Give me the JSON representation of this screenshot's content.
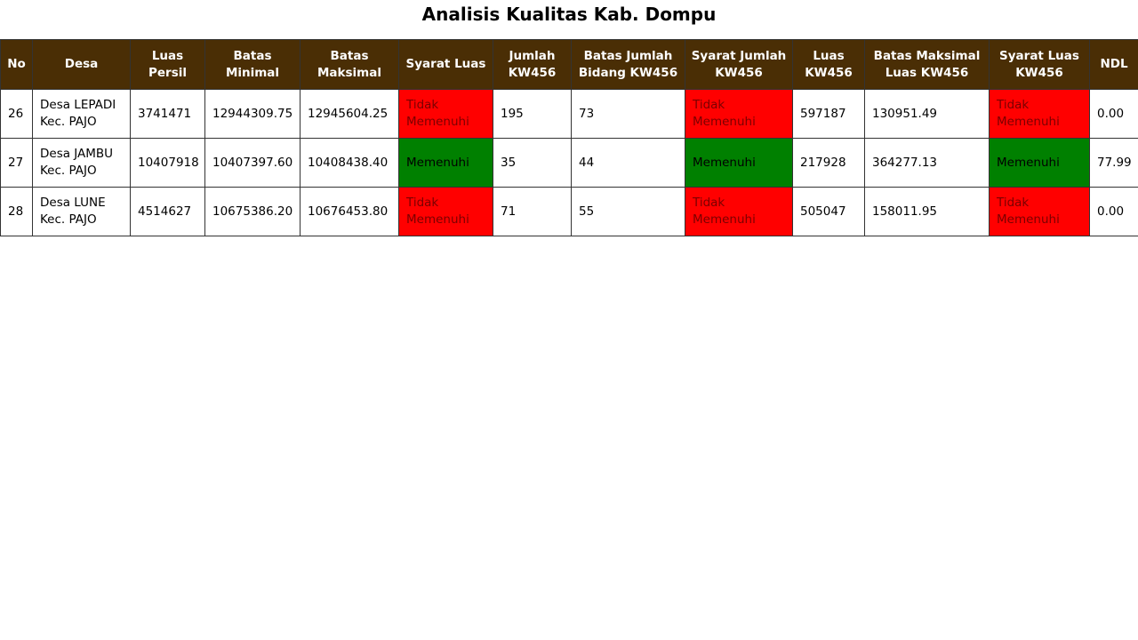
{
  "page": {
    "title": "Analisis Kualitas Kab. Dompu"
  },
  "colors": {
    "header_bg": "#4a2e05",
    "fail": "#ff0000",
    "pass": "#008000"
  },
  "table": {
    "headers": [
      "No",
      "Desa",
      "Luas Persil",
      "Batas Minimal",
      "Batas Maksimal",
      "Syarat Luas",
      "Jumlah KW456",
      "Batas Jumlah Bidang KW456",
      "Syarat Jumlah KW456",
      "Luas KW456",
      "Batas Maksimal Luas KW456",
      "Syarat Luas KW456",
      "NDL"
    ],
    "rows": [
      {
        "no": "26",
        "desa": "Desa LEPADI Kec. PAJO",
        "luas_persil": "3741471",
        "batas_minimal": "12944309.75",
        "batas_maksimal": "12945604.25",
        "syarat_luas": "Tidak Memenuhi",
        "jumlah_kw456": "195",
        "batas_jumlah_bidang_kw456": "73",
        "syarat_jumlah_kw456": "Tidak Memenuhi",
        "luas_kw456": "597187",
        "batas_maksimal_luas_kw456": "130951.49",
        "syarat_luas_kw456": "Tidak Memenuhi",
        "ndl": "0.00"
      },
      {
        "no": "27",
        "desa": "Desa JAMBU Kec. PAJO",
        "luas_persil": "10407918",
        "batas_minimal": "10407397.60",
        "batas_maksimal": "10408438.40",
        "syarat_luas": "Memenuhi",
        "jumlah_kw456": "35",
        "batas_jumlah_bidang_kw456": "44",
        "syarat_jumlah_kw456": "Memenuhi",
        "luas_kw456": "217928",
        "batas_maksimal_luas_kw456": "364277.13",
        "syarat_luas_kw456": "Memenuhi",
        "ndl": "77.99"
      },
      {
        "no": "28",
        "desa": "Desa LUNE Kec. PAJO",
        "luas_persil": "4514627",
        "batas_minimal": "10675386.20",
        "batas_maksimal": "10676453.80",
        "syarat_luas": "Tidak Memenuhi",
        "jumlah_kw456": "71",
        "batas_jumlah_bidang_kw456": "55",
        "syarat_jumlah_kw456": "Tidak Memenuhi",
        "luas_kw456": "505047",
        "batas_maksimal_luas_kw456": "158011.95",
        "syarat_luas_kw456": "Tidak Memenuhi",
        "ndl": "0.00"
      }
    ]
  }
}
